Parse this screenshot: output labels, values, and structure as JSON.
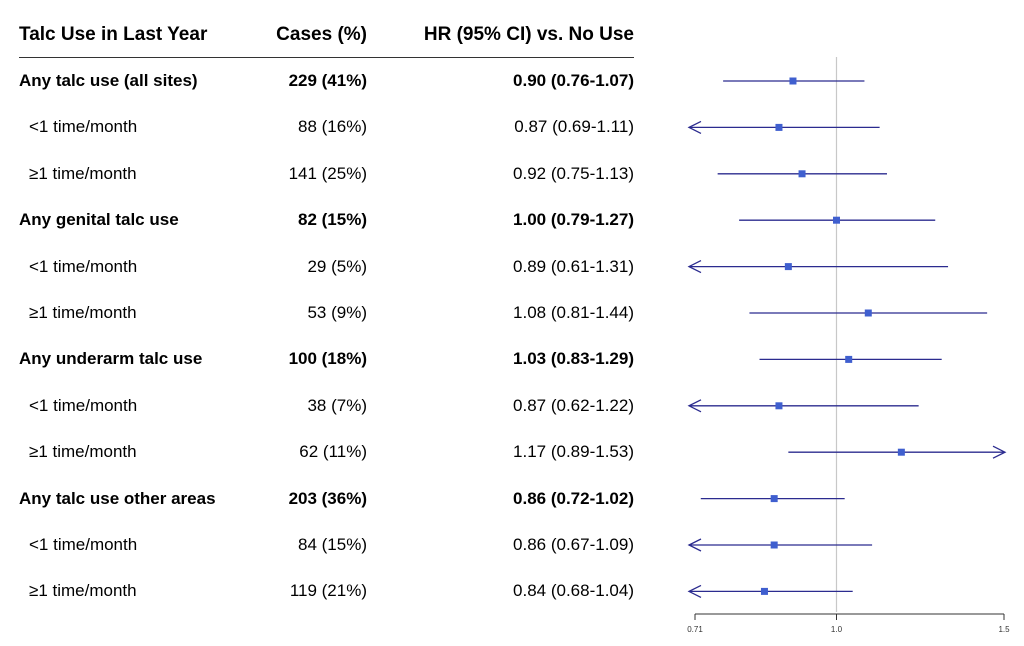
{
  "headers": {
    "name": "Talc Use in Last Year",
    "cases": "Cases (%)",
    "hr": "HR (95% CI) vs. No Use"
  },
  "rows": [
    {
      "label": "Any talc use (all sites)",
      "cases": "229 (41%)",
      "hr_text": "0.90 (0.76-1.07)",
      "bold": true
    },
    {
      "label": "<1 time/month",
      "cases": "88 (16%)",
      "hr_text": "0.87 (0.69-1.11)",
      "bold": false
    },
    {
      "label": "≥1 time/month",
      "cases": "141 (25%)",
      "hr_text": "0.92 (0.75-1.13)",
      "bold": false
    },
    {
      "label": "Any genital talc use",
      "cases": "82 (15%)",
      "hr_text": "1.00 (0.79-1.27)",
      "bold": true
    },
    {
      "label": "<1 time/month",
      "cases": "29 (5%)",
      "hr_text": "0.89 (0.61-1.31)",
      "bold": false
    },
    {
      "label": "≥1 time/month",
      "cases": "53 (9%)",
      "hr_text": "1.08 (0.81-1.44)",
      "bold": false
    },
    {
      "label": "Any underarm talc use",
      "cases": "100 (18%)",
      "hr_text": "1.03 (0.83-1.29)",
      "bold": true
    },
    {
      "label": "<1 time/month",
      "cases": "38 (7%)",
      "hr_text": "0.87 (0.62-1.22)",
      "bold": false
    },
    {
      "label": "≥1 time/month",
      "cases": "62 (11%)",
      "hr_text": "1.17 (0.89-1.53)",
      "bold": false
    },
    {
      "label": "Any talc use other areas",
      "cases": "203 (36%)",
      "hr_text": "0.86 (0.72-1.02)",
      "bold": true
    },
    {
      "label": "<1 time/month",
      "cases": "84 (15%)",
      "hr_text": "0.86 (0.67-1.09)",
      "bold": false
    },
    {
      "label": "≥1 time/month",
      "cases": "119 (21%)",
      "hr_text": "0.84 (0.68-1.04)",
      "bold": false
    }
  ],
  "colors": {
    "ci_line": "#2b2b8f",
    "point": "#3f5fcf",
    "reference": "#c8c8c8",
    "axis": "#333333"
  },
  "chart_data": {
    "type": "scatter",
    "subtype": "forest",
    "title": "",
    "xlabel": "",
    "ylabel": "",
    "x_scale": "log",
    "xlim": [
      0.71,
      1.5
    ],
    "xticks": [
      0.71,
      1.0,
      1.5
    ],
    "xtick_labels": [
      "0.71",
      "1.0",
      "1.5"
    ],
    "reference_line": 1.0,
    "grid": false,
    "legend": "none",
    "categories": [
      "Any talc use (all sites)",
      "<1 time/month",
      "≥1 time/month",
      "Any genital talc use",
      "<1 time/month",
      "≥1 time/month",
      "Any underarm talc use",
      "<1 time/month",
      "≥1 time/month",
      "Any talc use other areas",
      "<1 time/month",
      "≥1 time/month"
    ],
    "hr": [
      0.9,
      0.87,
      0.92,
      1.0,
      0.89,
      1.08,
      1.03,
      0.87,
      1.17,
      0.86,
      0.86,
      0.84
    ],
    "lower": [
      0.76,
      0.69,
      0.75,
      0.79,
      0.61,
      0.81,
      0.83,
      0.62,
      0.89,
      0.72,
      0.67,
      0.68
    ],
    "upper": [
      1.07,
      1.11,
      1.13,
      1.27,
      1.31,
      1.44,
      1.29,
      1.22,
      1.53,
      1.02,
      1.09,
      1.04
    ]
  }
}
